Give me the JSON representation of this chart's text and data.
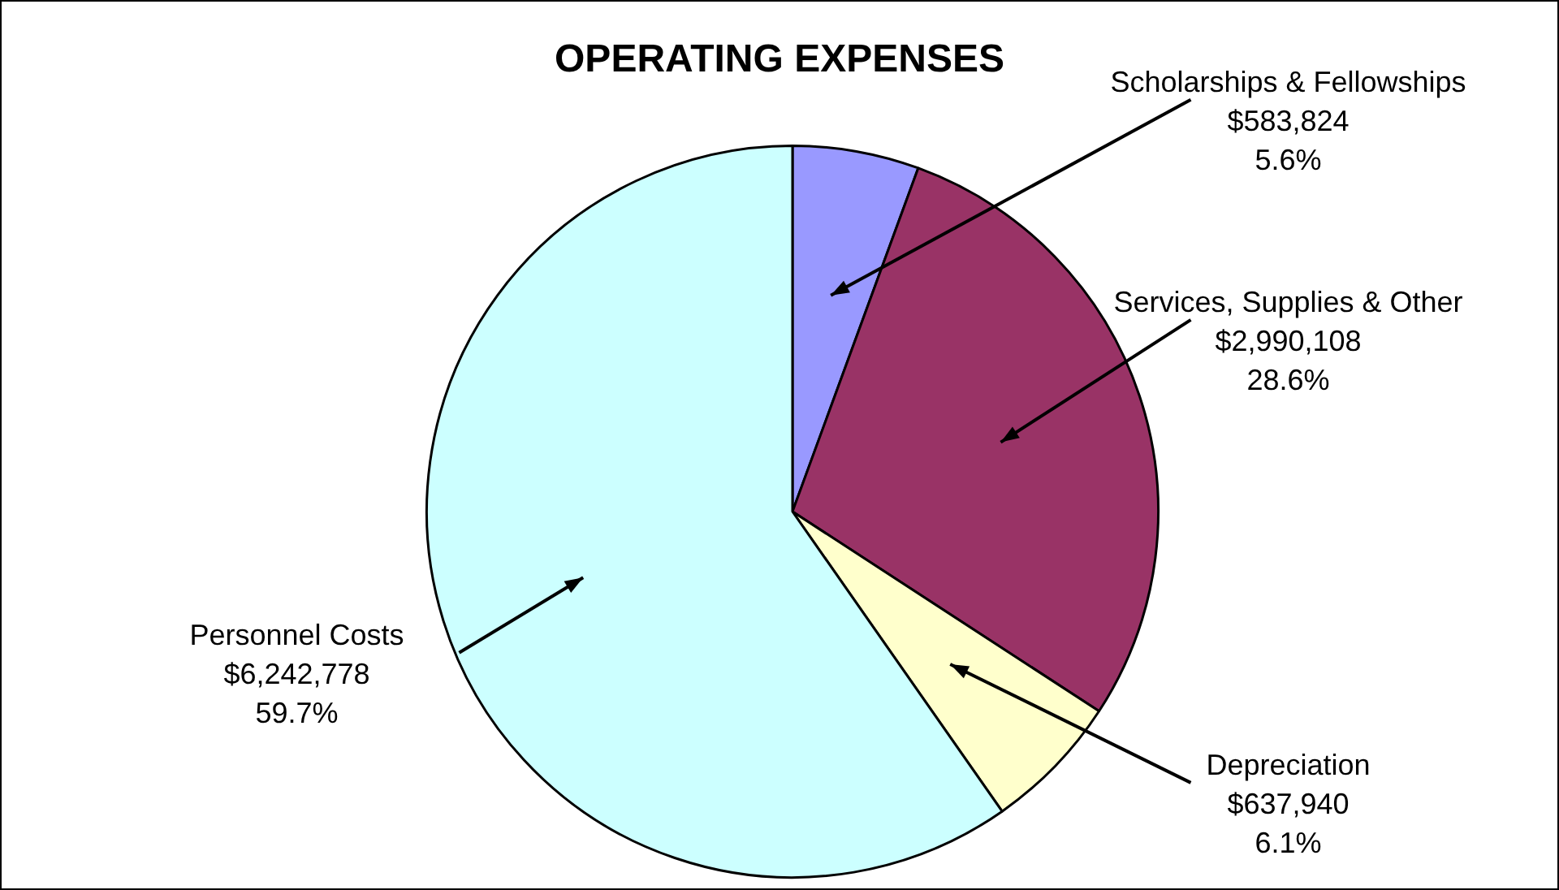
{
  "chart_data": {
    "type": "pie",
    "title": "OPERATING EXPENSES",
    "categories": [
      "Scholarships & Fellowships",
      "Services, Supplies & Other",
      "Depreciation",
      "Personnel Costs"
    ],
    "values": [
      583824,
      2990108,
      637940,
      6242778
    ],
    "colors": [
      "#9999ff",
      "#993366",
      "#ffffcc",
      "#ccffff"
    ],
    "value_labels": [
      "$583,824\n5.6%",
      "$2,990,108\n28.6%",
      "$637,940\n6.1%",
      "$6,242,778\n59.7%"
    ]
  }
}
